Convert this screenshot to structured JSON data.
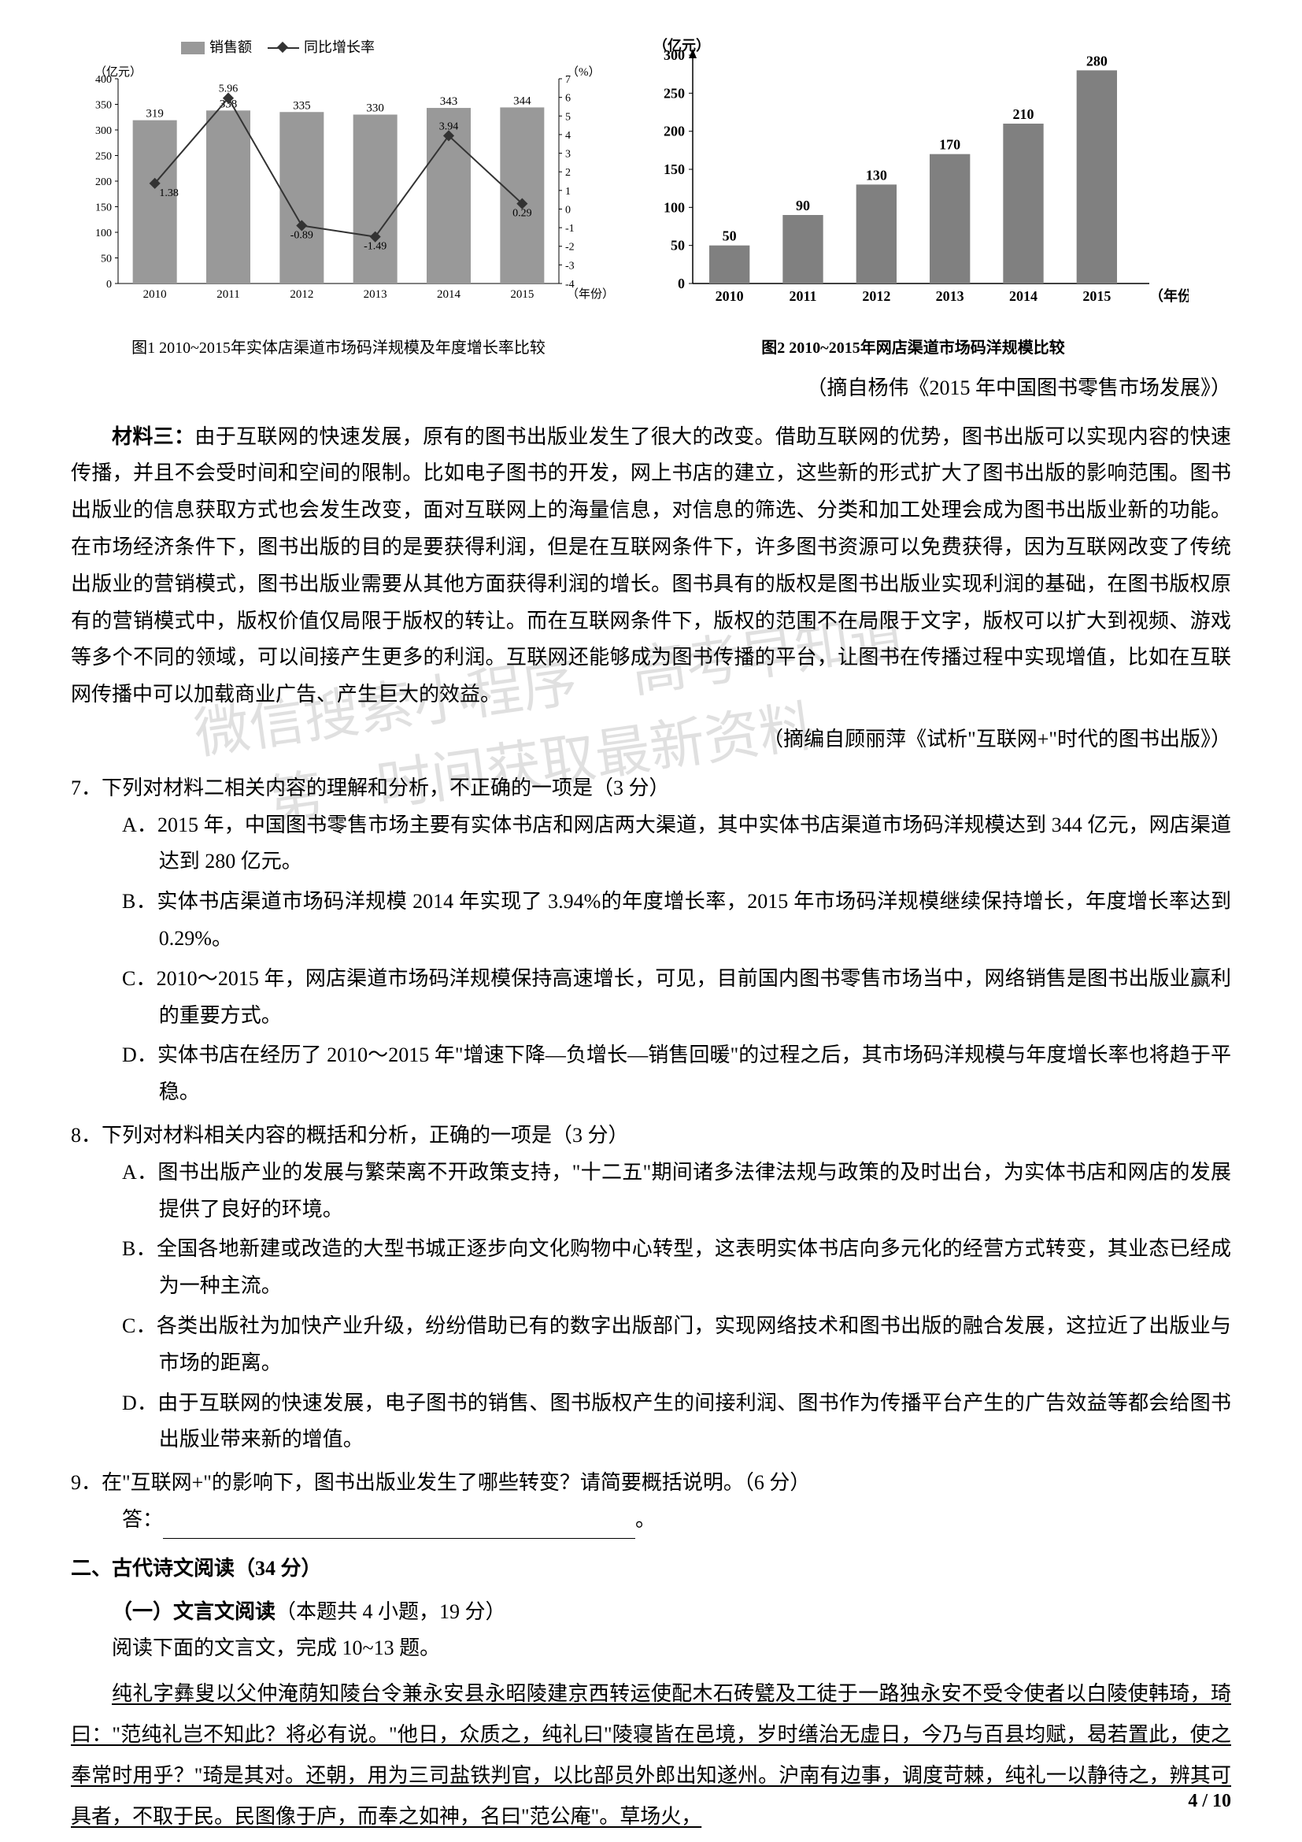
{
  "chart1": {
    "type": "bar+line",
    "legend": {
      "bar": "销售额",
      "line": "同比增长率"
    },
    "y1_label": "（亿元）",
    "y2_label": "（%）",
    "x_label": "（年份）",
    "y1_lim": [
      0,
      400
    ],
    "y1_tick_step": 50,
    "y2_lim": [
      -4,
      7
    ],
    "y2_tick_step": 1,
    "categories": [
      "2010",
      "2011",
      "2012",
      "2013",
      "2014",
      "2015"
    ],
    "bar_values": [
      319,
      338,
      335,
      330,
      343,
      344
    ],
    "line_values": [
      1.38,
      5.96,
      -0.89,
      -1.49,
      3.94,
      0.29
    ],
    "bar_color": "#999999",
    "line_color": "#333333",
    "grid_color": "#cccccc",
    "background_color": "#ffffff",
    "caption": "图1 2010~2015年实体店渠道市场码洋规模及年度增长率比较"
  },
  "chart2": {
    "type": "bar",
    "y_label": "（亿元）",
    "x_label": "（年份）",
    "ylim": [
      0,
      300
    ],
    "ytick_step": 50,
    "categories": [
      "2010",
      "2011",
      "2012",
      "2013",
      "2014",
      "2015"
    ],
    "values": [
      50,
      90,
      130,
      170,
      210,
      280
    ],
    "bar_color": "#808080",
    "grid_color": "#cccccc",
    "background_color": "#ffffff",
    "caption": "图2 2010~2015年网店渠道市场码洋规模比较"
  },
  "citation1": "（摘自杨伟《2015 年中国图书零售市场发展》）",
  "material3": {
    "heading": "材料三：",
    "text": "由于互联网的快速发展，原有的图书出版业发生了很大的改变。借助互联网的优势，图书出版可以实现内容的快速传播，并且不会受时间和空间的限制。比如电子图书的开发，网上书店的建立，这些新的形式扩大了图书出版的影响范围。图书出版业的信息获取方式也会发生改变，面对互联网上的海量信息，对信息的筛选、分类和加工处理会成为图书出版业新的功能。在市场经济条件下，图书出版的目的是要获得利润，但是在互联网条件下，许多图书资源可以免费获得，因为互联网改变了传统出版业的营销模式，图书出版业需要从其他方面获得利润的增长。图书具有的版权是图书出版业实现利润的基础，在图书版权原有的营销模式中，版权价值仅局限于版权的转让。而在互联网条件下，版权的范围不在局限于文字，版权可以扩大到视频、游戏等多个不同的领域，可以间接产生更多的利润。互联网还能够成为图书传播的平台，让图书在传播过程中实现增值，比如在互联网传播中可以加载商业广告、产生巨大的效益。"
  },
  "citation2": "（摘编自顾丽萍《试析\"互联网+\"时代的图书出版》）",
  "q7": {
    "stem": "7．下列对材料二相关内容的理解和分析，不正确的一项是（3 分）",
    "a": "A．2015 年，中国图书零售市场主要有实体书店和网店两大渠道，其中实体书店渠道市场码洋规模达到 344 亿元，网店渠道达到 280 亿元。",
    "b": "B．实体书店渠道市场码洋规模 2014 年实现了 3.94%的年度增长率，2015 年市场码洋规模继续保持增长，年度增长率达到 0.29%。",
    "c": "C．2010～2015 年，网店渠道市场码洋规模保持高速增长，可见，目前国内图书零售市场当中，网络销售是图书出版业赢利的重要方式。",
    "d": "D．实体书店在经历了 2010～2015 年\"增速下降—负增长—销售回暖\"的过程之后，其市场码洋规模与年度增长率也将趋于平稳。"
  },
  "q8": {
    "stem": "8．下列对材料相关内容的概括和分析，正确的一项是（3 分）",
    "a": "A．图书出版产业的发展与繁荣离不开政策支持，\"十二五\"期间诸多法律法规与政策的及时出台，为实体书店和网店的发展提供了良好的环境。",
    "b": "B．全国各地新建或改造的大型书城正逐步向文化购物中心转型，这表明实体书店向多元化的经营方式转变，其业态已经成为一种主流。",
    "c": "C．各类出版社为加快产业升级，纷纷借助已有的数字出版部门，实现网络技术和图书出版的融合发展，这拉近了出版业与市场的距离。",
    "d": "D．由于互联网的快速发展，电子图书的销售、图书版权产生的间接利润、图书作为传播平台产生的广告效益等都会给图书出版业带来新的增值。"
  },
  "q9": {
    "stem": "9．在\"互联网+\"的影响下，图书出版业发生了哪些转变？请简要概括说明。（6 分）",
    "ans_label": "答："
  },
  "section2": {
    "heading": "二、古代诗文阅读（34 分）",
    "sub1": "（一）文言文阅读",
    "sub1_extra": "（本题共 4 小题，19 分）",
    "instr": "阅读下面的文言文，完成 10~13 题。"
  },
  "classical": "纯礼字彝叟以父仲淹荫知陵台令兼永安县永昭陵建京西转运使配木石砖甓及工徒于一路独永安不受令使者以白陵使韩琦，琦曰：\"范纯礼岂不知此？将必有说。\"他日，众质之，纯礼曰\"陵寝皆在邑境，岁时缮治无虚日，今乃与百县均赋，曷若置此，使之奉常时用乎？\"琦是其对。还朝，用为三司盐铁判官，以比部员外郎出知遂州。沪南有边事，调度苛棘，纯礼一以静待之，辨其可具者，不取于民。民图像于庐，而奉之如神，名曰\"范公庵\"。草场火，",
  "page_num": "4 / 10",
  "watermark": "微信搜索小程序 高考早知道\n第一时间获取最新资料"
}
